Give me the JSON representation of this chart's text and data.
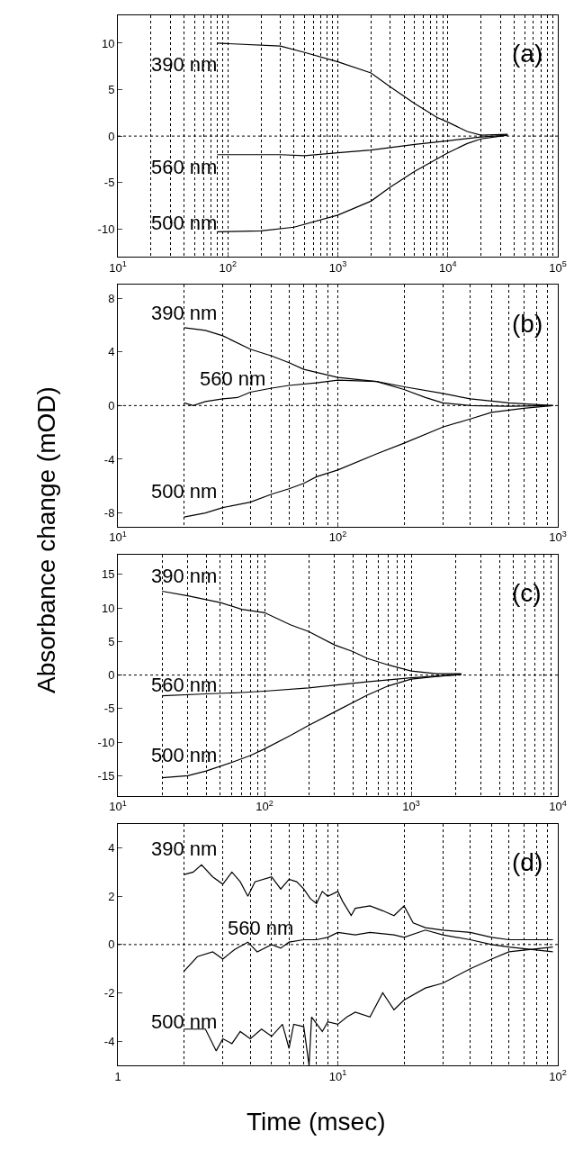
{
  "chart_data": [
    {
      "type": "line",
      "ylabel": "Absorbance change (mOD)",
      "annotations": [
        "(a)"
      ],
      "log": "x",
      "grid": "x",
      "marker": "none",
      "line_style": "solid",
      "xlim": [
        10,
        100000
      ],
      "xticks": [
        {
          "value": 10,
          "label": "10$^{1}$"
        },
        {
          "value": 100,
          "label": "10$^{2}$"
        },
        {
          "value": 1000,
          "label": "10$^{3}$"
        },
        {
          "value": 10000,
          "label": "10$^{4}$"
        },
        {
          "value": 100000,
          "label": "10$^{5}$"
        }
      ],
      "ylim": [
        -13,
        13
      ],
      "yticks": [
        -10,
        -5,
        0,
        5,
        10
      ],
      "ref_lines": [
        {
          "axis": "y",
          "value": 0,
          "line_style": "dotted"
        }
      ],
      "series": [
        {
          "name": "390 nm",
          "color": "#000000",
          "x": [
            80,
            300,
            500,
            1000,
            2000,
            3000,
            5000,
            8000,
            10000,
            15000,
            20000,
            35000
          ],
          "values": [
            10,
            9.7,
            9.0,
            8.0,
            6.8,
            5.3,
            3.5,
            2.0,
            1.5,
            0.5,
            0.1,
            0.2
          ]
        },
        {
          "name": "560 nm",
          "color": "#000000",
          "x": [
            80,
            300,
            500,
            1000,
            2000,
            5000,
            10000,
            20000,
            35000
          ],
          "values": [
            -2,
            -2,
            -2.1,
            -1.8,
            -1.5,
            -0.9,
            -0.5,
            -0.1,
            0.1
          ]
        },
        {
          "name": "500 nm",
          "color": "#000000",
          "x": [
            80,
            200,
            400,
            1000,
            2000,
            3000,
            5000,
            10000,
            15000,
            20000,
            35000
          ],
          "values": [
            -10.3,
            -10.2,
            -9.8,
            -8.5,
            -7.0,
            -5.5,
            -3.8,
            -1.8,
            -0.8,
            -0.3,
            0.1
          ]
        }
      ]
    },
    {
      "type": "line",
      "annotations": [
        "(b)"
      ],
      "log": "x",
      "grid": "x",
      "marker": "none",
      "line_style": "solid",
      "xlim": [
        10,
        1000
      ],
      "xticks": [
        {
          "value": 10,
          "label": "10$^{1}$"
        },
        {
          "value": 100,
          "label": "10$^{2}$"
        },
        {
          "value": 1000,
          "label": "10$^{3}$"
        }
      ],
      "ylim": [
        -9,
        9
      ],
      "yticks": [
        -8,
        -4,
        0,
        4,
        8
      ],
      "ref_lines": [
        {
          "axis": "y",
          "value": 0,
          "line_style": "dotted"
        }
      ],
      "series": [
        {
          "name": "390 nm",
          "color": "#000000",
          "x": [
            20,
            25,
            30,
            40,
            50,
            60,
            70,
            100,
            150,
            200,
            300,
            400,
            600,
            950
          ],
          "values": [
            5.8,
            5.6,
            5.2,
            4.2,
            3.7,
            3.2,
            2.7,
            2.1,
            1.8,
            1.4,
            0.9,
            0.5,
            0.2,
            0.0
          ]
        },
        {
          "name": "560 nm",
          "color": "#000000",
          "x": [
            20,
            22,
            25,
            30,
            35,
            40,
            50,
            60,
            80,
            100,
            150,
            200,
            250,
            300,
            400,
            600,
            950
          ],
          "values": [
            0.2,
            0,
            0.3,
            0.5,
            0.6,
            1.0,
            1.3,
            1.5,
            1.7,
            1.9,
            1.8,
            1.2,
            0.6,
            0.2,
            0.0,
            -0.05,
            0
          ]
        },
        {
          "name": "500 nm",
          "color": "#000000",
          "x": [
            20,
            25,
            30,
            40,
            50,
            60,
            70,
            80,
            100,
            150,
            200,
            300,
            400,
            500,
            700,
            950
          ],
          "values": [
            -8.3,
            -8.0,
            -7.6,
            -7.2,
            -6.6,
            -6.2,
            -5.8,
            -5.3,
            -4.8,
            -3.6,
            -2.8,
            -1.6,
            -1.0,
            -0.5,
            -0.2,
            0
          ]
        }
      ]
    },
    {
      "type": "line",
      "annotations": [
        "(c)"
      ],
      "log": "x",
      "grid": "x",
      "marker": "none",
      "line_style": "solid",
      "xlim": [
        10,
        10000
      ],
      "xticks": [
        {
          "value": 10,
          "label": "10$^{1}$"
        },
        {
          "value": 100,
          "label": "10$^{2}$"
        },
        {
          "value": 1000,
          "label": "10$^{3}$"
        },
        {
          "value": 10000,
          "label": "10$^{4}$"
        }
      ],
      "ylim": [
        -18,
        18
      ],
      "yticks": [
        -15,
        -10,
        -5,
        0,
        5,
        10,
        15
      ],
      "ref_lines": [
        {
          "axis": "y",
          "value": 0,
          "line_style": "dotted"
        }
      ],
      "series": [
        {
          "name": "390 nm",
          "color": "#000000",
          "x": [
            20,
            30,
            50,
            70,
            100,
            150,
            200,
            300,
            400,
            500,
            700,
            1000,
            1500,
            2200
          ],
          "values": [
            12.5,
            11.8,
            10.8,
            9.8,
            9.3,
            7.5,
            6.5,
            4.5,
            3.5,
            2.5,
            1.5,
            0.6,
            0.2,
            0.2
          ]
        },
        {
          "name": "560 nm",
          "color": "#000000",
          "x": [
            20,
            40,
            70,
            100,
            200,
            300,
            500,
            1000,
            2200
          ],
          "values": [
            -3.1,
            -2.8,
            -2.6,
            -2.4,
            -1.9,
            -1.5,
            -1.0,
            -0.4,
            0.1
          ]
        },
        {
          "name": "500 nm",
          "color": "#000000",
          "x": [
            20,
            30,
            40,
            60,
            80,
            100,
            150,
            200,
            300,
            500,
            700,
            1000,
            1500,
            2200
          ],
          "values": [
            -15.3,
            -15,
            -14.3,
            -13,
            -12,
            -11,
            -9,
            -7.5,
            -5.5,
            -3,
            -1.6,
            -0.6,
            -0.2,
            0.1
          ]
        }
      ]
    },
    {
      "type": "line",
      "xlabel": "Time (msec)",
      "annotations": [
        "(d)"
      ],
      "log": "x",
      "grid": "x",
      "marker": "none",
      "line_style": "solid",
      "xlim": [
        1,
        100
      ],
      "xticks": [
        1,
        {
          "value": 10,
          "label": "10$^{1}$"
        },
        {
          "value": 100,
          "label": "10$^{2}$"
        }
      ],
      "ylim": [
        -5,
        5
      ],
      "yticks": [
        -4,
        -2,
        0,
        2,
        4
      ],
      "ref_lines": [
        {
          "axis": "y",
          "value": 0,
          "line_style": "dotted"
        }
      ],
      "series": [
        {
          "name": "390 nm",
          "color": "#000000",
          "x": [
            2,
            2.2,
            2.4,
            2.7,
            3,
            3.3,
            3.6,
            3.9,
            4.2,
            5,
            5.5,
            6,
            6.5,
            7,
            7.5,
            8,
            8.5,
            9,
            10,
            10.5,
            11.5,
            12,
            14,
            16,
            18,
            20,
            22,
            25,
            30,
            40,
            50,
            60,
            95
          ],
          "values": [
            2.9,
            3.0,
            3.3,
            2.8,
            2.5,
            3.0,
            2.6,
            2.0,
            2.6,
            2.8,
            2.3,
            2.7,
            2.6,
            2.3,
            1.9,
            1.7,
            2.2,
            2.0,
            2.2,
            1.8,
            1.2,
            1.5,
            1.6,
            1.4,
            1.2,
            1.6,
            0.9,
            0.7,
            0.6,
            0.5,
            0.3,
            0.2,
            0.2
          ]
        },
        {
          "name": "560 nm",
          "color": "#000000",
          "x": [
            2,
            2.3,
            2.7,
            3,
            3.4,
            3.9,
            4.3,
            5,
            5.5,
            6,
            7,
            8,
            9,
            10,
            12,
            14,
            18,
            20,
            25,
            30,
            40,
            50,
            60,
            95
          ],
          "values": [
            -1.1,
            -0.5,
            -0.3,
            -0.6,
            -0.2,
            0.1,
            -0.3,
            0.0,
            -0.15,
            0.1,
            0.2,
            0.2,
            0.3,
            0.5,
            0.4,
            0.5,
            0.4,
            0.3,
            0.6,
            0.4,
            0.2,
            0.0,
            -0.1,
            -0.3
          ]
        },
        {
          "name": "500 nm",
          "color": "#000000",
          "x": [
            2,
            2.5,
            2.8,
            3,
            3.3,
            3.6,
            4,
            4.5,
            5,
            5.6,
            6,
            6.3,
            7,
            7.4,
            7.6,
            8.5,
            9,
            10,
            11,
            12,
            14,
            16,
            18,
            20,
            25,
            30,
            40,
            50,
            60,
            95
          ],
          "values": [
            -3.5,
            -3.5,
            -4.4,
            -3.9,
            -4.1,
            -3.6,
            -3.9,
            -3.5,
            -3.8,
            -3.3,
            -4.3,
            -3.3,
            -3.4,
            -5.0,
            -3.0,
            -3.6,
            -3.2,
            -3.3,
            -3.0,
            -2.8,
            -3.0,
            -2.0,
            -2.7,
            -2.3,
            -1.8,
            -1.6,
            -1.0,
            -0.6,
            -0.3,
            -0.1
          ]
        }
      ]
    }
  ]
}
